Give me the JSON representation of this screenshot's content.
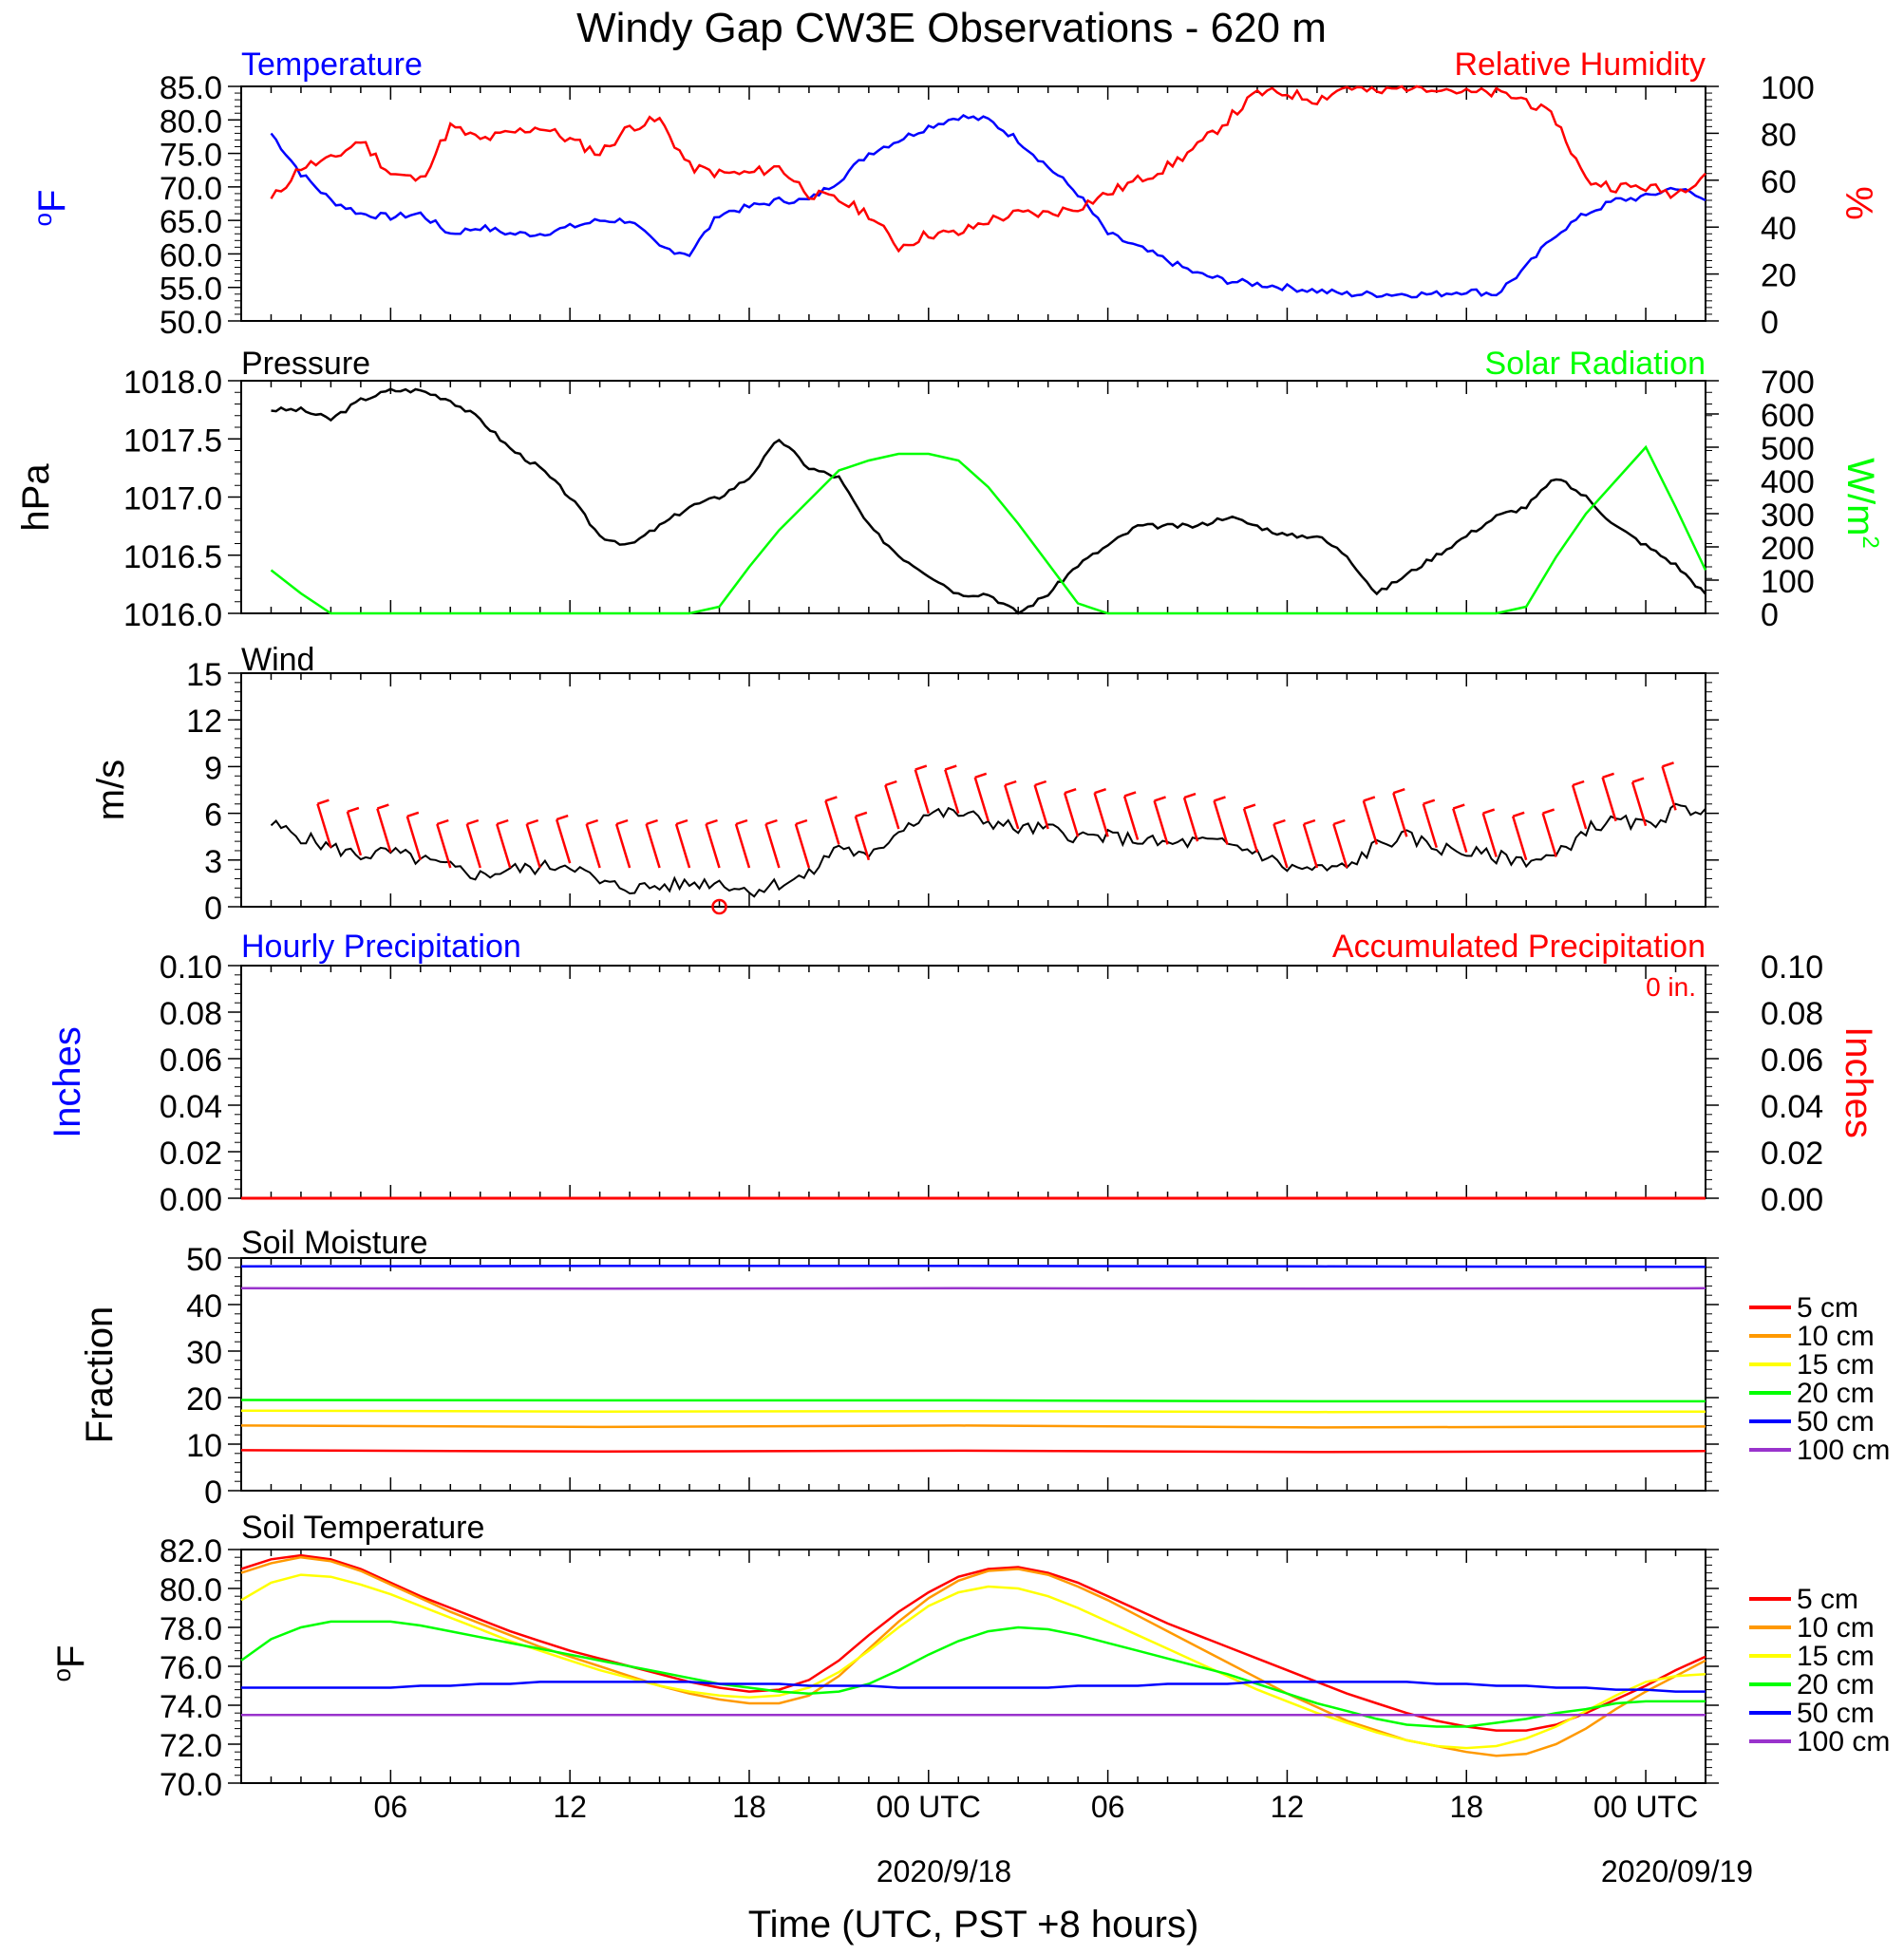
{
  "figure": {
    "title": "Windy Gap CW3E Observations - 620 m",
    "xlabel": "Time (UTC, PST +8 hours)",
    "x_ticks": [
      "06",
      "12",
      "18",
      "00 UTC",
      "06",
      "12",
      "18",
      "00 UTC"
    ],
    "x_date_labels": [
      "2020/9/18",
      "2020/09/19"
    ],
    "colors": {
      "blue": "#0000ff",
      "red": "#ff0000",
      "green": "#00ff00",
      "black": "#000000"
    }
  },
  "chart_data": [
    {
      "type": "line",
      "left_title": "Temperature",
      "right_title": "Relative Humidity",
      "ylabel_left": "oF",
      "ylabel_right": "%",
      "ylim_left": [
        50,
        85
      ],
      "ylim_right": [
        0,
        100
      ],
      "yticks_left": [
        "85.0",
        "80.0",
        "75.0",
        "70.0",
        "65.0",
        "60.0",
        "55.0",
        "50.0"
      ],
      "yticks_right": [
        "100",
        "80",
        "60",
        "40",
        "20",
        "0"
      ],
      "x_hours": [
        1,
        2,
        3,
        4,
        5,
        6,
        7,
        8,
        9,
        10,
        11,
        12,
        13,
        14,
        15,
        16,
        17,
        18,
        19,
        20,
        21,
        22,
        23,
        24,
        25,
        26,
        27,
        28,
        29,
        30,
        31,
        32,
        33,
        34,
        35,
        36,
        37,
        38,
        39,
        40,
        41,
        42,
        43,
        44,
        45,
        46,
        47,
        48,
        49
      ],
      "series": [
        {
          "name": "Temperature",
          "color": "#0000ff",
          "axis": "left",
          "values": [
            78,
            72,
            68,
            66,
            65.5,
            66,
            63,
            64,
            63,
            63,
            64,
            65,
            65,
            61,
            60,
            66,
            67,
            68,
            68,
            71,
            75,
            77,
            79,
            80.5,
            80,
            77,
            73,
            69,
            63,
            61,
            59,
            57,
            56,
            55.5,
            55,
            54.5,
            54,
            54,
            54,
            54,
            54.5,
            54,
            58,
            63,
            66,
            68,
            68.5,
            70,
            68
          ]
        },
        {
          "name": "Relative Humidity",
          "color": "#ff0000",
          "axis": "left",
          "values": [
            68,
            73,
            74,
            77,
            72,
            71,
            79,
            77,
            78,
            79,
            77,
            75,
            79,
            80,
            73,
            72,
            72,
            73,
            69,
            68,
            66,
            61,
            63,
            63,
            65,
            66,
            66,
            67,
            69,
            71,
            73,
            76,
            80,
            84,
            84,
            83,
            85,
            84,
            85,
            85,
            84,
            84,
            83,
            80,
            71,
            70,
            70,
            69,
            72
          ]
        }
      ]
    },
    {
      "type": "line",
      "left_title": "Pressure",
      "right_title": "Solar Radiation",
      "ylabel_left": "hPa",
      "ylabel_right": "W/m2",
      "ylim_left": [
        1015.8,
        1018.2
      ],
      "ylim_right": [
        0,
        700
      ],
      "yticks_left": [
        "1018.0",
        "1017.5",
        "1017.0",
        "1016.5",
        "1016.0"
      ],
      "yticks_right": [
        "700",
        "600",
        "500",
        "400",
        "300",
        "200",
        "100",
        "0"
      ],
      "x_hours": [
        1,
        2,
        3,
        4,
        5,
        6,
        7,
        8,
        9,
        10,
        11,
        12,
        13,
        14,
        15,
        16,
        17,
        18,
        19,
        20,
        21,
        22,
        23,
        24,
        25,
        26,
        27,
        28,
        29,
        30,
        31,
        32,
        33,
        34,
        35,
        36,
        37,
        38,
        39,
        40,
        41,
        42,
        43,
        44,
        45,
        46,
        47,
        48,
        49
      ],
      "series": [
        {
          "name": "Pressure",
          "color": "#000000",
          "axis": "left",
          "values": [
            1017.9,
            1017.9,
            1017.8,
            1018.0,
            1018.1,
            1018.1,
            1018.0,
            1017.8,
            1017.5,
            1017.3,
            1017.0,
            1016.6,
            1016.5,
            1016.7,
            1016.9,
            1017.0,
            1017.2,
            1017.6,
            1017.3,
            1017.2,
            1016.7,
            1016.4,
            1016.2,
            1016.0,
            1016.0,
            1015.8,
            1016.0,
            1016.3,
            1016.5,
            1016.7,
            1016.7,
            1016.7,
            1016.8,
            1016.7,
            1016.6,
            1016.6,
            1016.4,
            1016.0,
            1016.2,
            1016.4,
            1016.6,
            1016.8,
            1016.9,
            1017.2,
            1017.0,
            1016.7,
            1016.5,
            1016.3,
            1016.0
          ]
        },
        {
          "name": "Solar Radiation",
          "color": "#00ff00",
          "axis": "right",
          "values": [
            130,
            60,
            0,
            0,
            0,
            0,
            0,
            0,
            0,
            0,
            0,
            0,
            0,
            0,
            0,
            20,
            140,
            250,
            340,
            430,
            460,
            480,
            480,
            460,
            380,
            270,
            150,
            30,
            0,
            0,
            0,
            0,
            0,
            0,
            0,
            0,
            0,
            0,
            0,
            0,
            0,
            0,
            20,
            170,
            300,
            400,
            500,
            320,
            130
          ]
        }
      ]
    },
    {
      "type": "line",
      "left_title": "Wind",
      "ylabel_left": "m/s",
      "ylim_left": [
        0,
        15
      ],
      "yticks_left": [
        "15",
        "12",
        "9",
        "6",
        "3",
        "0"
      ],
      "x_hours": [
        1,
        2,
        3,
        4,
        5,
        6,
        7,
        8,
        9,
        10,
        11,
        12,
        13,
        14,
        15,
        16,
        17,
        18,
        19,
        20,
        21,
        22,
        23,
        24,
        25,
        26,
        27,
        28,
        29,
        30,
        31,
        32,
        33,
        34,
        35,
        36,
        37,
        38,
        39,
        40,
        41,
        42,
        43,
        44,
        45,
        46,
        47,
        48,
        49
      ],
      "series": [
        {
          "name": "Wind",
          "color": "#000000",
          "axis": "left",
          "values": [
            5.3,
            4.5,
            3.8,
            3.3,
            3.5,
            3.0,
            2.5,
            2.0,
            2.4,
            2.5,
            2.8,
            1.5,
            1.2,
            1.3,
            1.5,
            1.6,
            1.0,
            1.5,
            2.0,
            4.0,
            3.0,
            5.0,
            6.0,
            6.0,
            5.5,
            5.0,
            5.0,
            4.5,
            4.5,
            4.3,
            4.0,
            4.2,
            4.0,
            3.5,
            2.5,
            2.4,
            2.5,
            4.0,
            4.5,
            3.8,
            3.5,
            3.2,
            3.0,
            3.2,
            5.0,
            5.5,
            5.2,
            6.2,
            6.3
          ]
        }
      ],
      "barb_hours": [
        3,
        4,
        5,
        6,
        7,
        8,
        9,
        10,
        11,
        12,
        13,
        14,
        15,
        16,
        17,
        18,
        19,
        20,
        21,
        22,
        23,
        24,
        25,
        26,
        27,
        28,
        29,
        30,
        31,
        32,
        33,
        34,
        35,
        36,
        37,
        38,
        39,
        40,
        41,
        42,
        43,
        44,
        45,
        46,
        47,
        48
      ],
      "calm_marker_hour": 16
    },
    {
      "type": "line",
      "left_title": "Hourly Precipitation",
      "right_title": "Accumulated Precipitation",
      "annotation": "0 in.",
      "ylabel_left": "Inches",
      "ylabel_right": "Inches",
      "ylim_left": [
        0,
        0.1
      ],
      "yticks_left": [
        "0.10",
        "0.08",
        "0.06",
        "0.04",
        "0.02",
        "0.00"
      ],
      "yticks_right": [
        "0.10",
        "0.08",
        "0.06",
        "0.04",
        "0.02",
        "0.00"
      ],
      "x_hours": [
        0,
        49
      ],
      "series": [
        {
          "name": "Hourly Precipitation",
          "color": "#0000ff",
          "axis": "left",
          "values": [
            0,
            0
          ]
        },
        {
          "name": "Accumulated Precipitation",
          "color": "#ff0000",
          "axis": "left",
          "values": [
            0,
            0
          ]
        }
      ]
    },
    {
      "type": "line",
      "left_title": "Soil Moisture",
      "ylabel_left": "Fraction",
      "ylim_left": [
        0,
        50
      ],
      "yticks_left": [
        "50",
        "40",
        "30",
        "20",
        "10",
        "0"
      ],
      "x_hours": [
        0,
        12,
        24,
        36,
        49
      ],
      "legend": [
        "5 cm",
        "10 cm",
        "15 cm",
        "20 cm",
        "50 cm",
        "100 cm"
      ],
      "series": [
        {
          "name": "5 cm",
          "color": "#ff0000",
          "axis": "left",
          "values": [
            8.7,
            8.4,
            8.6,
            8.3,
            8.5
          ]
        },
        {
          "name": "10 cm",
          "color": "#ff9900",
          "axis": "left",
          "values": [
            14,
            13.7,
            14,
            13.6,
            13.8
          ]
        },
        {
          "name": "15 cm",
          "color": "#ffff00",
          "axis": "left",
          "values": [
            17.2,
            17.0,
            17.1,
            16.9,
            17.0
          ]
        },
        {
          "name": "20 cm",
          "color": "#00ff00",
          "axis": "left",
          "values": [
            19.5,
            19.4,
            19.4,
            19.2,
            19.2
          ]
        },
        {
          "name": "50 cm",
          "color": "#0000ff",
          "axis": "left",
          "values": [
            48.2,
            48.3,
            48.3,
            48.2,
            48.1
          ]
        },
        {
          "name": "100 cm",
          "color": "#9933cc",
          "axis": "left",
          "values": [
            43.5,
            43.4,
            43.5,
            43.4,
            43.5
          ]
        }
      ]
    },
    {
      "type": "line",
      "left_title": "Soil Temperature",
      "ylabel_left": "oF",
      "ylim_left": [
        70,
        82
      ],
      "yticks_left": [
        "82.0",
        "80.0",
        "78.0",
        "76.0",
        "74.0",
        "72.0",
        "70.0"
      ],
      "x_hours": [
        0,
        1,
        2,
        3,
        4,
        5,
        6,
        7,
        8,
        9,
        10,
        11,
        12,
        13,
        14,
        15,
        16,
        17,
        18,
        19,
        20,
        21,
        22,
        23,
        24,
        25,
        26,
        27,
        28,
        29,
        30,
        31,
        32,
        33,
        34,
        35,
        36,
        37,
        38,
        39,
        40,
        41,
        42,
        43,
        44,
        45,
        46,
        47,
        48,
        49
      ],
      "legend": [
        "5 cm",
        "10 cm",
        "15 cm",
        "20 cm",
        "50 cm",
        "100 cm"
      ],
      "series": [
        {
          "name": "5 cm",
          "color": "#ff0000",
          "axis": "left",
          "values": [
            81,
            81.5,
            81.7,
            81.5,
            81,
            80.3,
            79.6,
            79,
            78.4,
            77.8,
            77.3,
            76.8,
            76.4,
            76,
            75.6,
            75.2,
            74.9,
            74.7,
            74.8,
            75.3,
            76.3,
            77.6,
            78.8,
            79.8,
            80.6,
            81,
            81.1,
            80.8,
            80.3,
            79.6,
            78.9,
            78.2,
            77.6,
            77,
            76.4,
            75.8,
            75.2,
            74.6,
            74.1,
            73.6,
            73.2,
            72.9,
            72.7,
            72.7,
            73,
            73.6,
            74.3,
            75,
            75.8,
            76.5
          ]
        },
        {
          "name": "10 cm",
          "color": "#ff9900",
          "axis": "left",
          "values": [
            80.8,
            81.3,
            81.6,
            81.4,
            80.9,
            80.2,
            79.5,
            78.8,
            78.2,
            77.6,
            77,
            76.5,
            76,
            75.5,
            75,
            74.6,
            74.3,
            74.1,
            74.1,
            74.5,
            75.5,
            76.9,
            78.3,
            79.5,
            80.4,
            80.9,
            81,
            80.7,
            80.1,
            79.4,
            78.6,
            77.8,
            77,
            76.2,
            75.4,
            74.6,
            73.9,
            73.2,
            72.7,
            72.2,
            71.9,
            71.6,
            71.4,
            71.5,
            72,
            72.8,
            73.8,
            74.7,
            75.5,
            76.3
          ]
        },
        {
          "name": "15 cm",
          "color": "#ffff00",
          "axis": "left",
          "values": [
            79.4,
            80.3,
            80.7,
            80.6,
            80.2,
            79.7,
            79.1,
            78.5,
            77.9,
            77.3,
            76.8,
            76.3,
            75.8,
            75.4,
            75,
            74.7,
            74.5,
            74.4,
            74.5,
            74.9,
            75.7,
            76.8,
            78,
            79.1,
            79.8,
            80.1,
            80,
            79.6,
            79,
            78.3,
            77.6,
            76.9,
            76.2,
            75.5,
            74.8,
            74.2,
            73.6,
            73.1,
            72.6,
            72.2,
            71.9,
            71.8,
            71.9,
            72.3,
            72.9,
            73.7,
            74.5,
            75.2,
            75.5,
            75.6
          ]
        },
        {
          "name": "20 cm",
          "color": "#00ff00",
          "axis": "left",
          "values": [
            76.3,
            77.4,
            78,
            78.3,
            78.3,
            78.3,
            78.1,
            77.8,
            77.5,
            77.2,
            76.9,
            76.6,
            76.3,
            76,
            75.7,
            75.4,
            75.1,
            74.9,
            74.7,
            74.6,
            74.7,
            75.1,
            75.8,
            76.6,
            77.3,
            77.8,
            78,
            77.9,
            77.6,
            77.2,
            76.8,
            76.4,
            76,
            75.6,
            75.1,
            74.6,
            74.1,
            73.7,
            73.3,
            73,
            72.9,
            72.9,
            73.1,
            73.3,
            73.6,
            73.8,
            74.1,
            74.2,
            74.2,
            74.2
          ]
        },
        {
          "name": "50 cm",
          "color": "#0000ff",
          "axis": "left",
          "values": [
            74.9,
            74.9,
            74.9,
            74.9,
            74.9,
            74.9,
            75,
            75,
            75.1,
            75.1,
            75.2,
            75.2,
            75.2,
            75.2,
            75.2,
            75.2,
            75.1,
            75.1,
            75.1,
            75,
            75,
            75,
            74.9,
            74.9,
            74.9,
            74.9,
            74.9,
            74.9,
            75,
            75,
            75,
            75.1,
            75.1,
            75.1,
            75.2,
            75.2,
            75.2,
            75.2,
            75.2,
            75.2,
            75.1,
            75.1,
            75,
            75,
            74.9,
            74.9,
            74.8,
            74.8,
            74.7,
            74.7
          ]
        },
        {
          "name": "100 cm",
          "color": "#9933cc",
          "axis": "left",
          "values": [
            73.5,
            73.5,
            73.5,
            73.5,
            73.5,
            73.5,
            73.5,
            73.5,
            73.5,
            73.5,
            73.5,
            73.5,
            73.5,
            73.5,
            73.5,
            73.5,
            73.5,
            73.5,
            73.5,
            73.5,
            73.5,
            73.5,
            73.5,
            73.5,
            73.5,
            73.5,
            73.5,
            73.5,
            73.5,
            73.5,
            73.5,
            73.5,
            73.5,
            73.5,
            73.5,
            73.5,
            73.5,
            73.5,
            73.5,
            73.5,
            73.5,
            73.5,
            73.5,
            73.5,
            73.5,
            73.5,
            73.5,
            73.5,
            73.5,
            73.5
          ]
        }
      ]
    }
  ]
}
